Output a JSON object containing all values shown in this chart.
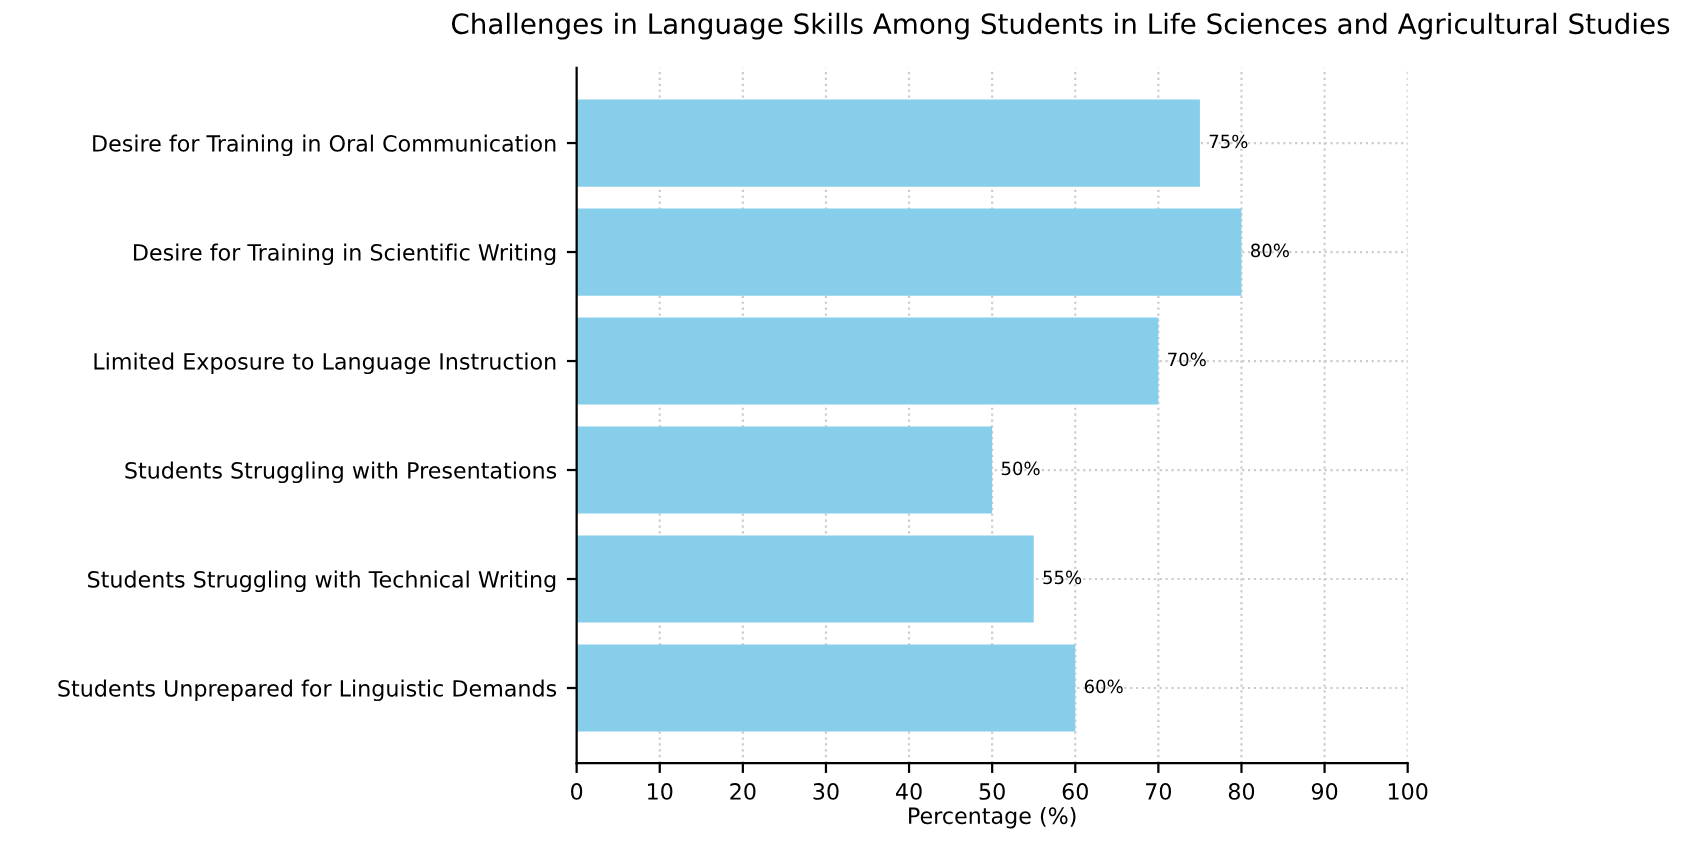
{
  "chart_data": {
    "type": "bar",
    "orientation": "horizontal",
    "title": "Challenges in Language Skills Among Students in Life Sciences and Agricultural Studies",
    "xlabel": "Percentage (%)",
    "categories": [
      "Desire for Training in Oral Communication",
      "Desire for Training in Scientific Writing",
      "Limited Exposure to Language Instruction",
      "Students Struggling with Presentations",
      "Students Struggling with Technical Writing",
      "Students Unprepared for Linguistic Demands"
    ],
    "values": [
      75,
      80,
      70,
      50,
      55,
      60
    ],
    "value_labels": [
      "75%",
      "80%",
      "70%",
      "50%",
      "55%",
      "60%"
    ],
    "color": "#87ceeb",
    "xlim": [
      0,
      100
    ],
    "xticks": [
      0,
      10,
      20,
      30,
      40,
      50,
      60,
      70,
      80,
      90,
      100
    ],
    "grid": true
  }
}
